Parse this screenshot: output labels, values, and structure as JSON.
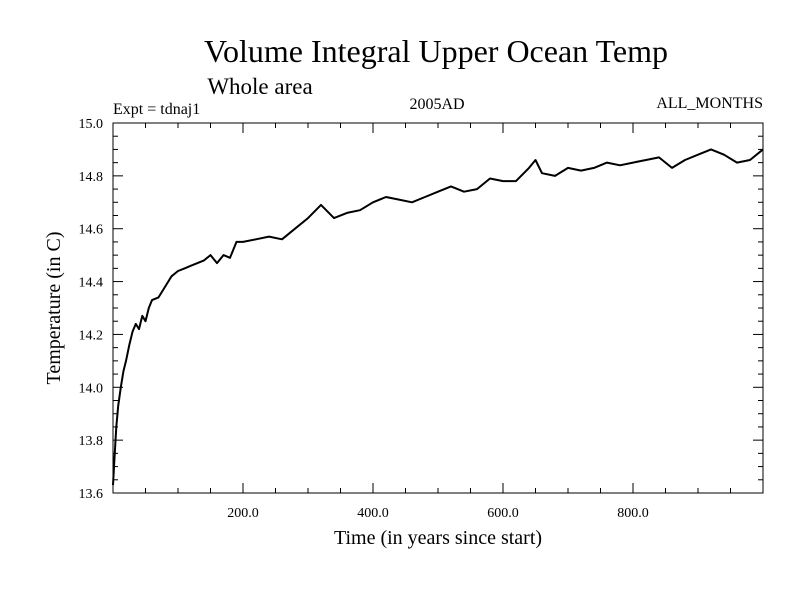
{
  "chart_data": {
    "type": "line",
    "title": "Volume Integral Upper Ocean Temp",
    "subtitle": "Whole area",
    "annotations": {
      "left": "Expt = tdnaj1",
      "center": "2005AD",
      "right": "ALL_MONTHS"
    },
    "xlabel": "Time (in years since start)",
    "ylabel": "Temperature (in C)",
    "xlim": [
      0,
      1000
    ],
    "ylim": [
      13.6,
      15.0
    ],
    "x_ticks": [
      200,
      400,
      600,
      800
    ],
    "x_tick_labels": [
      "200.0",
      "400.0",
      "600.0",
      "800.0"
    ],
    "y_ticks": [
      13.6,
      13.8,
      14.0,
      14.2,
      14.4,
      14.6,
      14.8,
      15.0
    ],
    "y_tick_labels": [
      "13.6",
      "13.8",
      "14.0",
      "14.2",
      "14.4",
      "14.6",
      "14.8",
      "15.0"
    ],
    "grid": false,
    "series": [
      {
        "name": "Volume integral upper ocean temperature",
        "x": [
          0,
          2,
          5,
          8,
          12,
          16,
          20,
          25,
          30,
          35,
          40,
          45,
          50,
          55,
          60,
          70,
          80,
          90,
          100,
          110,
          120,
          130,
          140,
          150,
          160,
          170,
          180,
          190,
          200,
          220,
          240,
          260,
          280,
          300,
          320,
          340,
          360,
          380,
          400,
          420,
          440,
          460,
          480,
          500,
          520,
          540,
          560,
          580,
          600,
          620,
          640,
          650,
          660,
          680,
          700,
          720,
          740,
          760,
          780,
          800,
          820,
          840,
          860,
          880,
          900,
          920,
          940,
          960,
          980,
          1000
        ],
        "values": [
          13.63,
          13.72,
          13.85,
          13.93,
          14.0,
          14.06,
          14.1,
          14.16,
          14.21,
          14.24,
          14.22,
          14.27,
          14.25,
          14.3,
          14.33,
          14.34,
          14.38,
          14.42,
          14.44,
          14.45,
          14.46,
          14.47,
          14.48,
          14.5,
          14.47,
          14.5,
          14.49,
          14.55,
          14.55,
          14.56,
          14.57,
          14.56,
          14.6,
          14.64,
          14.69,
          14.64,
          14.66,
          14.67,
          14.7,
          14.72,
          14.71,
          14.7,
          14.72,
          14.74,
          14.76,
          14.74,
          14.75,
          14.79,
          14.78,
          14.78,
          14.83,
          14.86,
          14.81,
          14.8,
          14.83,
          14.82,
          14.83,
          14.85,
          14.84,
          14.85,
          14.86,
          14.87,
          14.83,
          14.86,
          14.88,
          14.9,
          14.88,
          14.85,
          14.86,
          14.9
        ]
      }
    ]
  }
}
